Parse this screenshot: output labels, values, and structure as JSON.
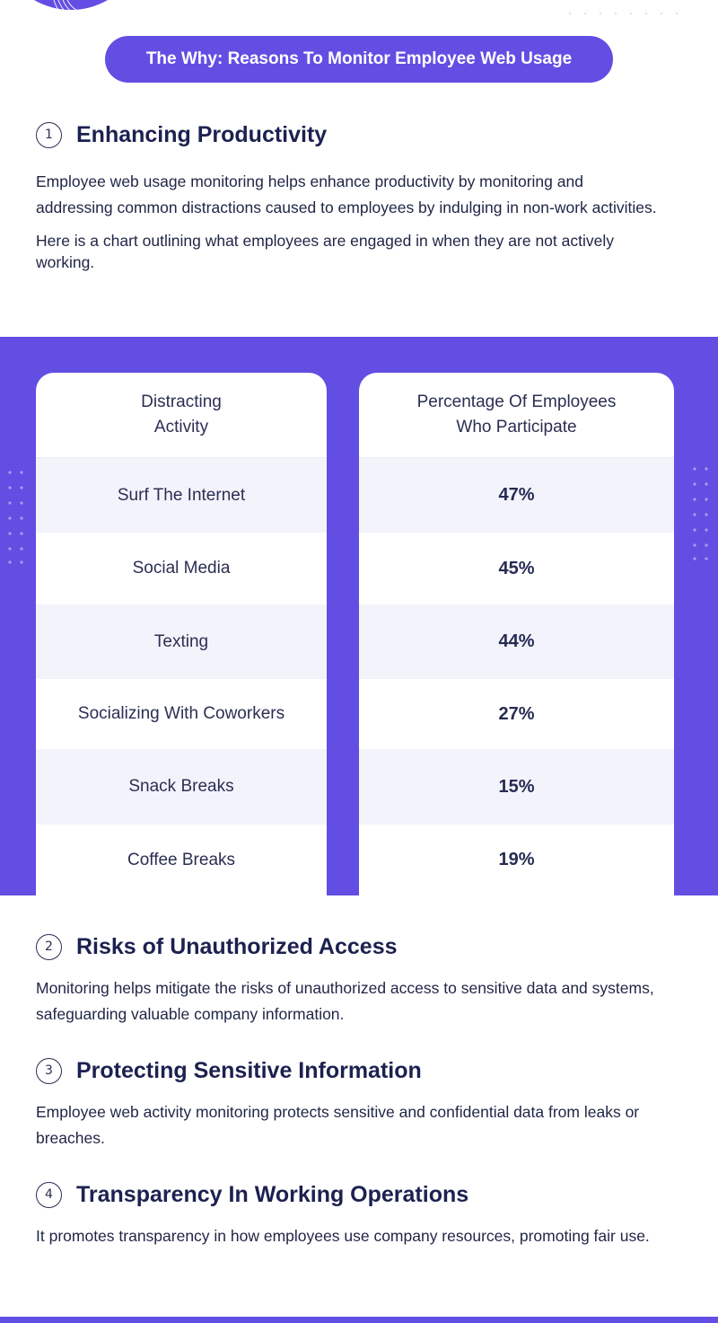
{
  "header": {
    "title": "The Why: Reasons To Monitor Employee Web Usage"
  },
  "sections": [
    {
      "number": "1",
      "title": "Enhancing Productivity",
      "body": "Employee web usage monitoring helps enhance productivity by monitoring and addressing common distractions caused to employees by indulging in non-work activities.",
      "body2": "Here is a chart outlining what employees are engaged in when they are not actively working."
    },
    {
      "number": "2",
      "title": "Risks of Unauthorized Access",
      "body": "Monitoring helps mitigate the risks of unauthorized access to sensitive data and systems, safeguarding valuable company information."
    },
    {
      "number": "3",
      "title": "Protecting Sensitive Information",
      "body": "Employee web activity monitoring protects sensitive and confidential data from leaks or breaches."
    },
    {
      "number": "4",
      "title": "Transparency In Working Operations",
      "body": "It promotes transparency in how employees use company resources, promoting fair use."
    }
  ],
  "table": {
    "col1_header": [
      "Distracting",
      "Activity"
    ],
    "col2_header": [
      "Percentage Of Employees",
      "Who Participate"
    ],
    "rows": [
      {
        "activity": "Surf The Internet",
        "percent": "47%"
      },
      {
        "activity": "Social Media",
        "percent": "45%"
      },
      {
        "activity": "Texting",
        "percent": "44%"
      },
      {
        "activity": "Socializing With Coworkers",
        "percent": "27%"
      },
      {
        "activity": "Snack Breaks",
        "percent": "15%"
      },
      {
        "activity": "Coffee Breaks",
        "percent": "19%"
      }
    ]
  },
  "colors": {
    "accent": "#634ee3",
    "heading": "#1c2150",
    "row_alt": "#f3f3fc"
  }
}
